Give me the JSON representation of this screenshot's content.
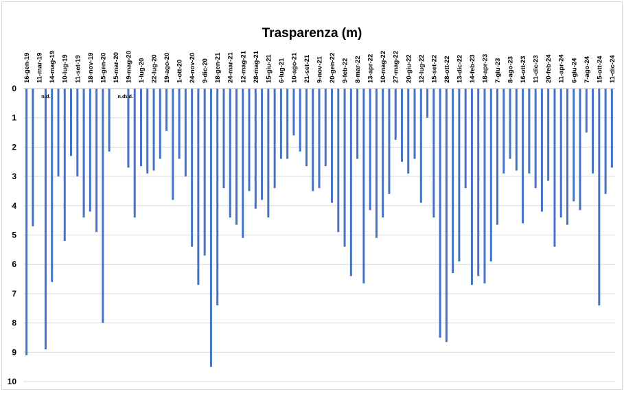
{
  "chart_data": {
    "type": "bar",
    "title": "Trasparenza (m)",
    "ylim": [
      0,
      10
    ],
    "y_inverted": true,
    "y_ticks": [
      0,
      1,
      2,
      3,
      4,
      5,
      6,
      7,
      8,
      9,
      10
    ],
    "x_axis_position": "top",
    "grid": true,
    "bar_color": "#4472c4",
    "missing_label": "n.d.",
    "labeled_categories": [
      "16-gen-19",
      "11-mar-19",
      "14-mag-19",
      "10-lug-19",
      "11-set-19",
      "18-nov-19",
      "15-gen-20",
      "15-mar-20",
      "19-mag-20",
      "1-lug-20",
      "22-lug-20",
      "19-ago-20",
      "1-ott-20",
      "24-nov-20",
      "9-dic-20",
      "18-gen-21",
      "24-mar-21",
      "12-mag-21",
      "28-mag-21",
      "15-giu-21",
      "6-lug-21",
      "10-ago-21",
      "21-set-21",
      "9-nov-21",
      "20-gen-22",
      "9-feb-22",
      "8-mar-22",
      "13-apr-22",
      "10-mag-22",
      "27-mag-22",
      "20-giu-22",
      "12-lug-22",
      "15-set-22",
      "28-ott-22",
      "13-dic-22",
      "14-feb-23",
      "18-apr-23",
      "7-giu-23",
      "8-ago-23",
      "16-ott-23",
      "11-dic-23",
      "20-feb-24",
      "11-apr-24",
      "6-giu-24",
      "7-ago-24",
      "15-ott-24",
      "11-dic-24"
    ],
    "values": [
      9.1,
      4.7,
      null,
      8.9,
      6.6,
      3.0,
      5.2,
      2.3,
      3.0,
      4.4,
      4.2,
      4.9,
      8.0,
      2.15,
      null,
      null,
      2.7,
      4.4,
      2.65,
      2.9,
      2.8,
      2.4,
      1.45,
      3.8,
      2.4,
      3.0,
      5.4,
      6.7,
      5.7,
      9.5,
      7.4,
      3.4,
      4.4,
      4.65,
      5.1,
      3.5,
      4.1,
      3.8,
      4.4,
      3.4,
      2.4,
      2.4,
      1.6,
      2.15,
      2.65,
      3.5,
      3.4,
      2.65,
      3.9,
      4.9,
      5.4,
      6.4,
      2.4,
      6.65,
      4.15,
      5.1,
      4.4,
      3.6,
      1.75,
      2.5,
      2.9,
      2.4,
      3.9,
      1.0,
      4.4,
      8.5,
      8.65,
      6.3,
      5.9,
      3.4,
      6.7,
      6.4,
      6.65,
      5.9,
      4.65,
      2.9,
      2.4,
      2.8,
      4.6,
      2.9,
      3.4,
      4.2,
      3.15,
      5.4,
      4.4,
      4.65,
      3.85,
      4.15,
      1.5,
      2.9,
      7.4,
      3.6,
      2.7
    ]
  }
}
